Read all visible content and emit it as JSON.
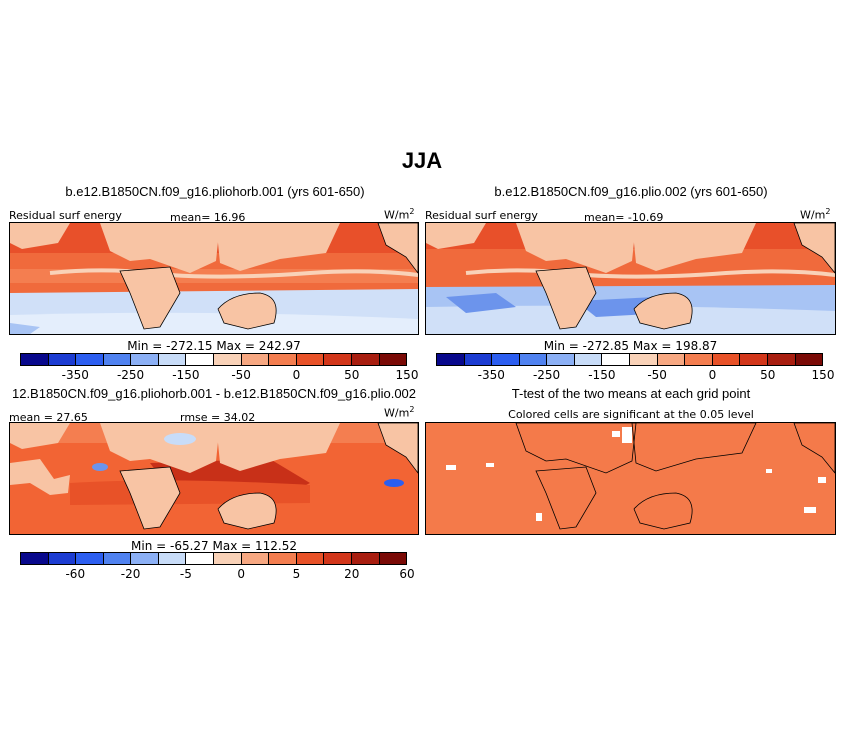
{
  "title": "JJA",
  "panels": [
    {
      "id": "p1",
      "title": "b.e12.B1850CN.f09_g16.pliohorb.001 (yrs 601-650)",
      "left_label": "Residual surf energy",
      "center_label": "mean=  16.96",
      "units": "W/m",
      "units_sup": "2",
      "minmax": "Min = -272.15  Max = 242.97",
      "colorbar": {
        "colors": [
          "#08088c",
          "#1c3cd2",
          "#2c5ef0",
          "#5082f0",
          "#8cb0f5",
          "#c8dcf8",
          "#ffffff",
          "#f9d2b8",
          "#f7a882",
          "#f47e50",
          "#e85228",
          "#d2361a",
          "#a81e10",
          "#7a0a06"
        ],
        "tick_labels": [
          "-350",
          "-250",
          "-150",
          "-50",
          "0",
          "50",
          "150"
        ]
      }
    },
    {
      "id": "p2",
      "title": "b.e12.B1850CN.f09_g16.plio.002 (yrs 601-650)",
      "left_label": "Residual surf energy",
      "center_label": "mean= -10.69",
      "units": "W/m",
      "units_sup": "2",
      "minmax": "Min = -272.85  Max = 198.87",
      "colorbar": {
        "colors": [
          "#08088c",
          "#1c3cd2",
          "#2c5ef0",
          "#5082f0",
          "#8cb0f5",
          "#c8dcf8",
          "#ffffff",
          "#f9d2b8",
          "#f7a882",
          "#f47e50",
          "#e85228",
          "#d2361a",
          "#a81e10",
          "#7a0a06"
        ],
        "tick_labels": [
          "-350",
          "-250",
          "-150",
          "-50",
          "0",
          "50",
          "150"
        ]
      }
    },
    {
      "id": "p3",
      "title": "12.B1850CN.f09_g16.pliohorb.001 - b.e12.B1850CN.f09_g16.plio.002",
      "left_label": "mean =  27.65",
      "center_label": "rmse =  34.02",
      "units": "W/m",
      "units_sup": "2",
      "minmax": "Min = -65.27  Max = 112.52",
      "colorbar": {
        "colors": [
          "#08088c",
          "#1c3cd2",
          "#2c5ef0",
          "#5082f0",
          "#8cb0f5",
          "#c8dcf8",
          "#ffffff",
          "#f9d2b8",
          "#f7a882",
          "#f47e50",
          "#e85228",
          "#d2361a",
          "#a81e10",
          "#7a0a06"
        ],
        "tick_labels": [
          "-60",
          "-20",
          "-5",
          "0",
          "5",
          "20",
          "60"
        ]
      }
    },
    {
      "id": "p4",
      "title": "T-test of the two means at each grid point",
      "subtitle": "Colored cells are significant at the 0.05 level"
    }
  ],
  "colors": {
    "ocean_warm": "#f06a3c",
    "ocean_hot": "#e8502a",
    "land_light": "#f8c4a4",
    "cool_light": "#d0e0f8",
    "cool_mid": "#a8c4f4",
    "cool_dark": "#6c94ec",
    "diff_warm": "#f26434",
    "diff_dark": "#c83018",
    "ttest_fill": "#f47a4a"
  }
}
